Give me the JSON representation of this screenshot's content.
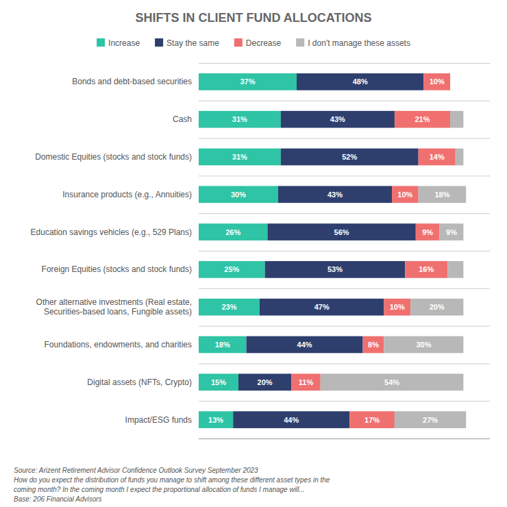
{
  "chart_data": {
    "type": "bar",
    "orientation": "horizontal",
    "stacked": true,
    "data_labels": true,
    "legend": "top",
    "grid": false,
    "tick_labels": "y",
    "title": "SHIFTS IN CLIENT FUND ALLOCATIONS",
    "annotations": [
      "Source: Arizent Retirement Advisor Confidence Outlook Survey September 2023\nHow do you expect the distribution of funds you manage to shift among these different asset types in the\ncoming month? In the coming month I expect the proportional allocation of funds I manage will...\nBase: 206 Financial Advisors"
    ],
    "categories": [
      "Bonds and debt-based securities",
      "Cash",
      "Domestic Equities (stocks and stock funds)",
      "Insurance products (e.g., Annuities)",
      "Education savings vehicles (e.g., 529 Plans)",
      "Foreign Equities (stocks and stock funds)",
      "Other alternative investments (Real estate,\nSecurities-based loans, Fungible assets)",
      "Foundations, endowments, and charities",
      "Digital assets (NFTs, Crypto)",
      "Impact/ESG funds"
    ],
    "xlim": [
      0,
      110
    ],
    "series": [
      {
        "name": "Increase",
        "color": "#2ec4a5",
        "values": [
          37,
          31,
          31,
          30,
          26,
          25,
          23,
          18,
          15,
          13
        ],
        "value_labels": [
          "37%",
          "31%",
          "31%",
          "30%",
          "26%",
          "25%",
          "23%",
          "18%",
          "15%",
          "13%"
        ]
      },
      {
        "name": "Stay the same",
        "color": "#2e3f6e",
        "values": [
          48,
          43,
          52,
          43,
          56,
          53,
          47,
          44,
          20,
          44
        ],
        "value_labels": [
          "48%",
          "43%",
          "52%",
          "43%",
          "56%",
          "53%",
          "47%",
          "44%",
          "20%",
          "44%"
        ]
      },
      {
        "name": "Decrease",
        "color": "#f07070",
        "values": [
          10,
          21,
          14,
          10,
          9,
          16,
          10,
          8,
          11,
          17
        ],
        "value_labels": [
          "10%",
          "21%",
          "14%",
          "10%",
          "9%",
          "16%",
          "10%",
          "8%",
          "11%",
          "17%"
        ]
      },
      {
        "name": "I don't manage these assets",
        "color": "#b8b8b8",
        "values": [
          0,
          5,
          3,
          18,
          9,
          6,
          20,
          30,
          54,
          27
        ],
        "value_labels": [
          null,
          null,
          null,
          "18%",
          "9%",
          null,
          "20%",
          "30%",
          "54%",
          "27%"
        ]
      }
    ]
  }
}
